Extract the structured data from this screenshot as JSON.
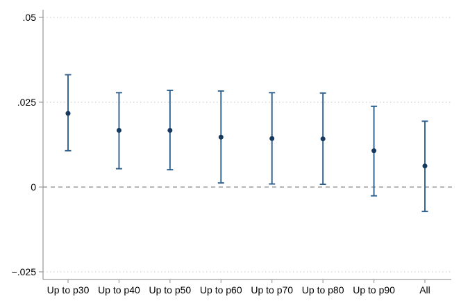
{
  "chart_data": {
    "type": "scatter",
    "subtype": "coefficient-plot-with-confidence-intervals",
    "title": "",
    "xlabel": "",
    "ylabel": "",
    "categories": [
      "Up to p30",
      "Up to p40",
      "Up to p50",
      "Up to p60",
      "Up to p70",
      "Up to p80",
      "Up to p90",
      "All"
    ],
    "series": [
      {
        "name": "point-estimate",
        "values": [
          0.0217,
          0.0167,
          0.0167,
          0.0147,
          0.0143,
          0.0142,
          0.0107,
          0.0062
        ],
        "ci_lower": [
          0.0107,
          0.0054,
          0.0051,
          0.0012,
          0.0009,
          0.0008,
          -0.0026,
          -0.0072
        ],
        "ci_upper": [
          0.0331,
          0.0278,
          0.0285,
          0.0283,
          0.0278,
          0.0277,
          0.0238,
          0.0194
        ]
      }
    ],
    "y_ticks": [
      {
        "value": 0.05,
        "label": ".05"
      },
      {
        "value": 0.025,
        "label": ".025"
      },
      {
        "value": 0,
        "label": "0"
      },
      {
        "value": -0.025,
        "label": "−.025"
      }
    ],
    "ylim": [
      -0.0273,
      0.0523
    ],
    "grid": "dotted horizontal gridlines at labeled y ticks",
    "zero_line": "dashed horizontal reference line at 0",
    "legend_position": "none",
    "colors": {
      "ci_line": "#2d5f8c",
      "marker": "#17395e",
      "axis": "#9d9d9d",
      "gridline": "#c6c6c6",
      "zero_line": "#6e6e6e",
      "tick_label": "#000000",
      "background": "#ffffff"
    }
  }
}
